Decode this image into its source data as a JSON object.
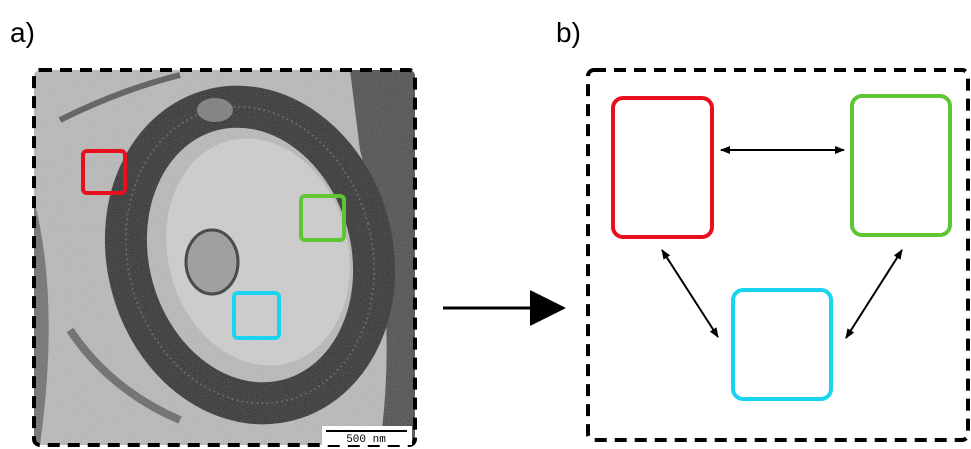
{
  "panels": [
    {
      "label": "a)",
      "scale_bar": "500 nm"
    },
    {
      "label": "b)"
    }
  ]
}
